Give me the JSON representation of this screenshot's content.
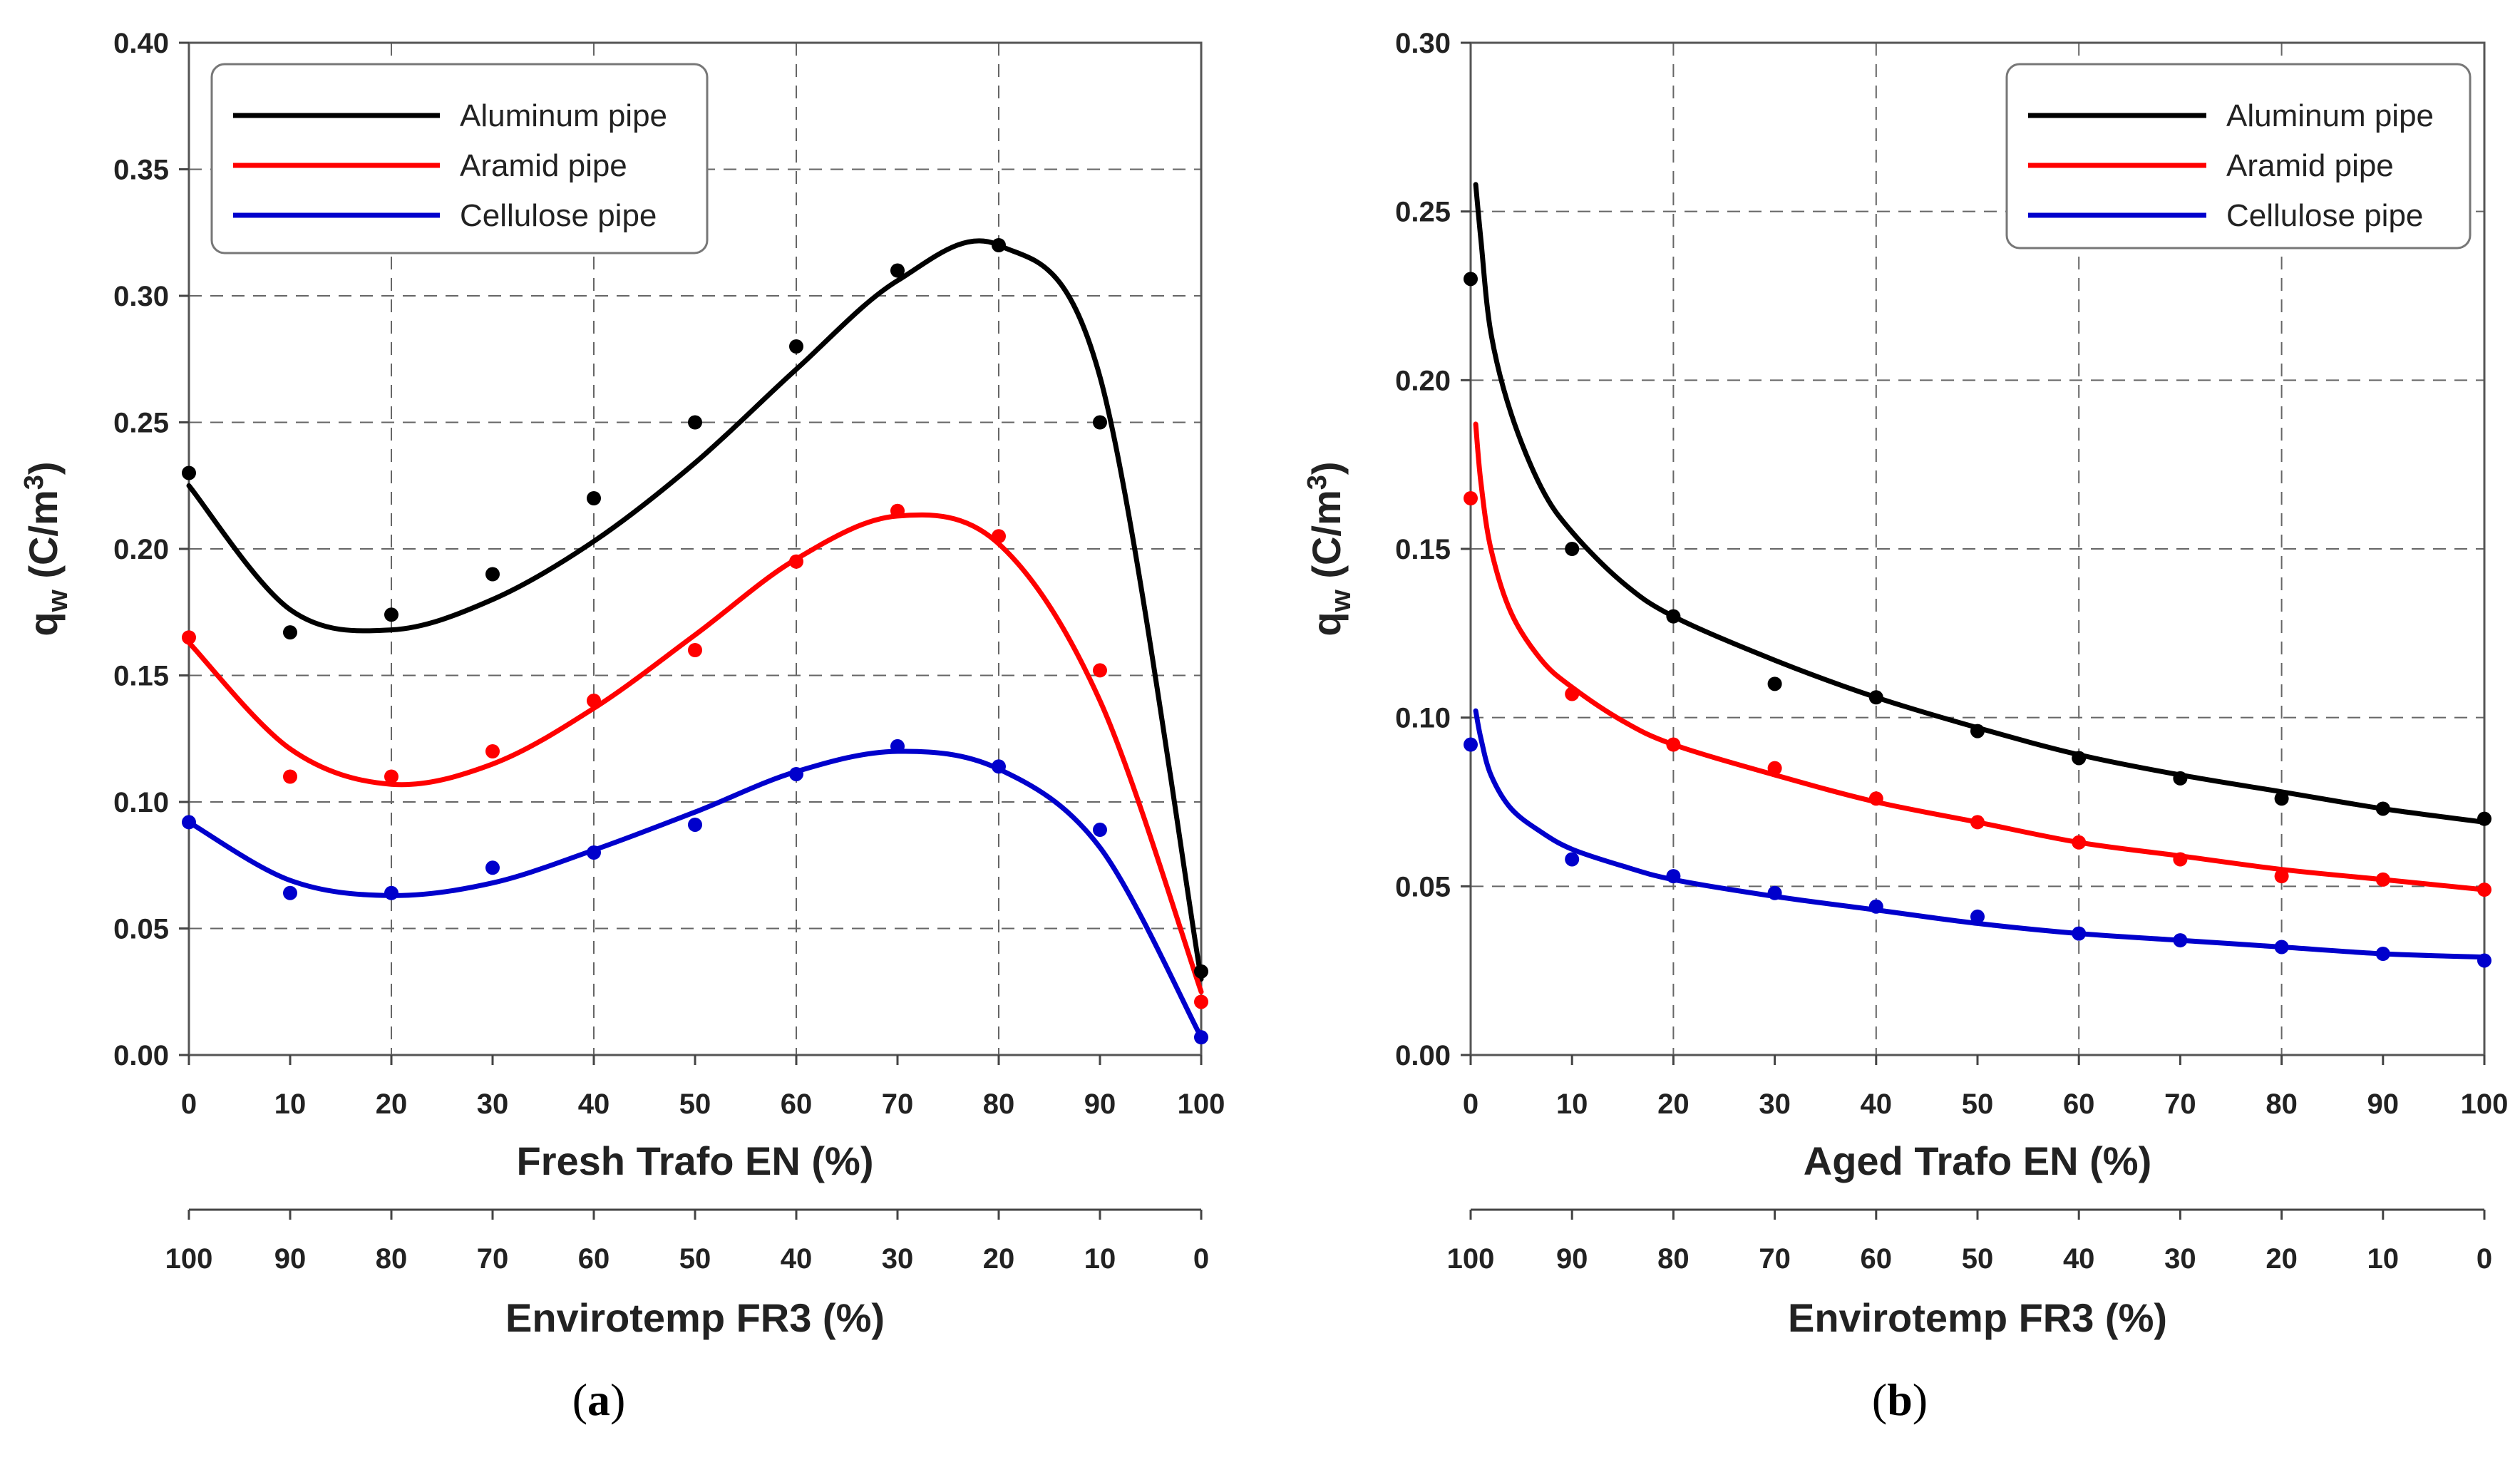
{
  "chart_data": [
    {
      "type": "line",
      "panel": "a",
      "caption_pre": "(",
      "caption_letter": "a",
      "caption_post": ")",
      "xlabel": "Fresh Trafo EN (%)",
      "x2label": "Envirotemp FR3 (%)",
      "ylabel": "q",
      "ylabel_sub": "w",
      "ylabel_unit": " (C/m",
      "ylabel_sup": "3",
      "ylabel_close": ")",
      "xlim": [
        0,
        100
      ],
      "ylim": [
        0,
        0.4
      ],
      "xticks": [
        "0",
        "10",
        "20",
        "30",
        "40",
        "50",
        "60",
        "70",
        "80",
        "90",
        "100"
      ],
      "x2ticks": [
        "100",
        "90",
        "80",
        "70",
        "60",
        "50",
        "40",
        "30",
        "20",
        "10",
        "0"
      ],
      "yticks": [
        "0.00",
        "0.05",
        "0.10",
        "0.15",
        "0.20",
        "0.25",
        "0.30",
        "0.35",
        "0.40"
      ],
      "grid": true,
      "legend_position": "top-left",
      "x": [
        0,
        10,
        20,
        30,
        40,
        50,
        60,
        70,
        80,
        90,
        100
      ],
      "series": [
        {
          "name": "Aluminum pipe",
          "color": "#000000",
          "values": [
            0.23,
            0.167,
            0.174,
            0.19,
            0.22,
            0.25,
            0.28,
            0.31,
            0.32,
            0.25,
            0.033
          ],
          "fit": [
            0.225,
            0.176,
            0.168,
            0.18,
            0.203,
            0.234,
            0.271,
            0.306,
            0.32,
            0.268,
            0.03
          ]
        },
        {
          "name": "Aramid pipe",
          "color": "#ff0000",
          "values": [
            0.165,
            0.11,
            0.11,
            0.12,
            0.14,
            0.16,
            0.195,
            0.215,
            0.205,
            0.152,
            0.021
          ],
          "fit": [
            0.163,
            0.121,
            0.107,
            0.115,
            0.137,
            0.166,
            0.196,
            0.213,
            0.202,
            0.14,
            0.025
          ]
        },
        {
          "name": "Cellulose pipe",
          "color": "#0000cc",
          "values": [
            0.092,
            0.064,
            0.064,
            0.074,
            0.08,
            0.091,
            0.111,
            0.122,
            0.114,
            0.089,
            0.007
          ],
          "fit": [
            0.092,
            0.069,
            0.063,
            0.068,
            0.081,
            0.096,
            0.112,
            0.12,
            0.113,
            0.082,
            0.007
          ]
        }
      ]
    },
    {
      "type": "line",
      "panel": "b",
      "caption_pre": "(",
      "caption_letter": "b",
      "caption_post": ")",
      "xlabel": "Aged Trafo EN (%)",
      "x2label": "Envirotemp FR3 (%)",
      "ylabel": "q",
      "ylabel_sub": "w",
      "ylabel_unit": " (C/m",
      "ylabel_sup": "3",
      "ylabel_close": ")",
      "xlim": [
        0,
        100
      ],
      "ylim": [
        0,
        0.3
      ],
      "xticks": [
        "0",
        "10",
        "20",
        "30",
        "40",
        "50",
        "60",
        "70",
        "80",
        "90",
        "100"
      ],
      "x2ticks": [
        "100",
        "90",
        "80",
        "70",
        "60",
        "50",
        "40",
        "30",
        "20",
        "10",
        "0"
      ],
      "yticks": [
        "0.00",
        "0.05",
        "0.10",
        "0.15",
        "0.20",
        "0.25",
        "0.30"
      ],
      "grid": true,
      "legend_position": "top-right",
      "x": [
        0,
        10,
        20,
        30,
        40,
        50,
        60,
        70,
        80,
        90,
        100
      ],
      "series": [
        {
          "name": "Aluminum pipe",
          "color": "#000000",
          "values": [
            0.23,
            0.15,
            0.13,
            0.11,
            0.106,
            0.096,
            0.088,
            0.082,
            0.076,
            0.073,
            0.07
          ],
          "fit_x": [
            0.5,
            1,
            2,
            4,
            7,
            10,
            15,
            20,
            30,
            40,
            50,
            60,
            70,
            80,
            90,
            100
          ],
          "fit": [
            0.258,
            0.242,
            0.214,
            0.19,
            0.168,
            0.155,
            0.14,
            0.13,
            0.117,
            0.106,
            0.097,
            0.089,
            0.083,
            0.078,
            0.073,
            0.069
          ]
        },
        {
          "name": "Aramid pipe",
          "color": "#ff0000",
          "values": [
            0.165,
            0.107,
            0.092,
            0.085,
            0.076,
            0.069,
            0.063,
            0.058,
            0.053,
            0.052,
            0.049
          ],
          "fit_x": [
            0.5,
            1,
            2,
            4,
            7,
            10,
            15,
            20,
            30,
            40,
            50,
            60,
            70,
            80,
            90,
            100
          ],
          "fit": [
            0.187,
            0.17,
            0.15,
            0.131,
            0.117,
            0.109,
            0.099,
            0.092,
            0.083,
            0.075,
            0.069,
            0.063,
            0.059,
            0.055,
            0.052,
            0.049
          ]
        },
        {
          "name": "Cellulose pipe",
          "color": "#0000cc",
          "values": [
            0.092,
            0.058,
            0.053,
            0.048,
            0.044,
            0.041,
            0.036,
            0.034,
            0.032,
            0.03,
            0.028
          ],
          "fit_x": [
            0.5,
            1,
            2,
            4,
            7,
            10,
            15,
            20,
            30,
            40,
            50,
            60,
            70,
            80,
            90,
            100
          ],
          "fit": [
            0.102,
            0.094,
            0.083,
            0.073,
            0.066,
            0.061,
            0.056,
            0.052,
            0.047,
            0.043,
            0.039,
            0.036,
            0.034,
            0.032,
            0.03,
            0.029
          ]
        }
      ]
    }
  ]
}
